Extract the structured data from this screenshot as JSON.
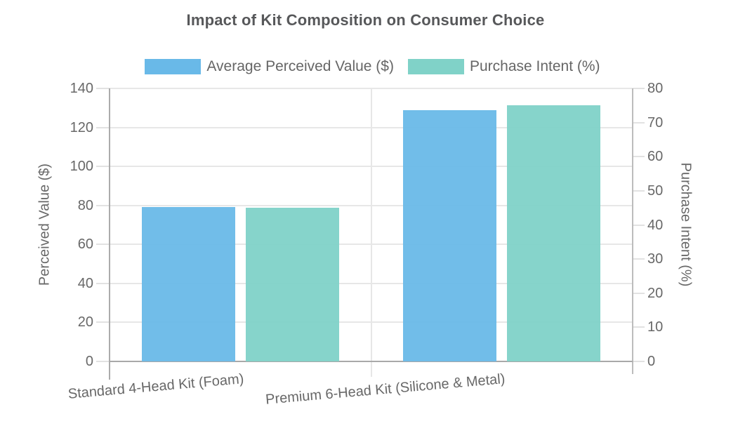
{
  "chart_data": {
    "type": "bar",
    "title": "Impact of Kit Composition on Consumer Choice",
    "categories": [
      "Standard 4-Head Kit (Foam)",
      "Premium 6-Head Kit (Silicone & Metal)"
    ],
    "series": [
      {
        "name": "Average Perceived Value ($)",
        "axis": "left",
        "color": "#69b9e8",
        "values": [
          79,
          129
        ]
      },
      {
        "name": "Purchase Intent (%)",
        "axis": "right",
        "color": "#80d2c8",
        "values": [
          45,
          75
        ]
      }
    ],
    "left_axis": {
      "title": "Perceived Value ($)",
      "min": 0,
      "max": 140,
      "ticks": [
        0,
        20,
        40,
        60,
        80,
        100,
        120,
        140
      ]
    },
    "right_axis": {
      "title": "Purchase Intent (%)",
      "min": 0,
      "max": 80,
      "ticks": [
        0,
        10,
        20,
        30,
        40,
        50,
        60,
        70,
        80
      ]
    },
    "legend_position": "top",
    "grid": true
  },
  "colors": {
    "series_blue": "#69b9e8",
    "series_teal": "#80d2c8",
    "title_text": "#57585a",
    "tick_text": "#686868",
    "grid_line": "#e7e7e7",
    "axis_line": "#ababab",
    "background": "#ffffff"
  }
}
